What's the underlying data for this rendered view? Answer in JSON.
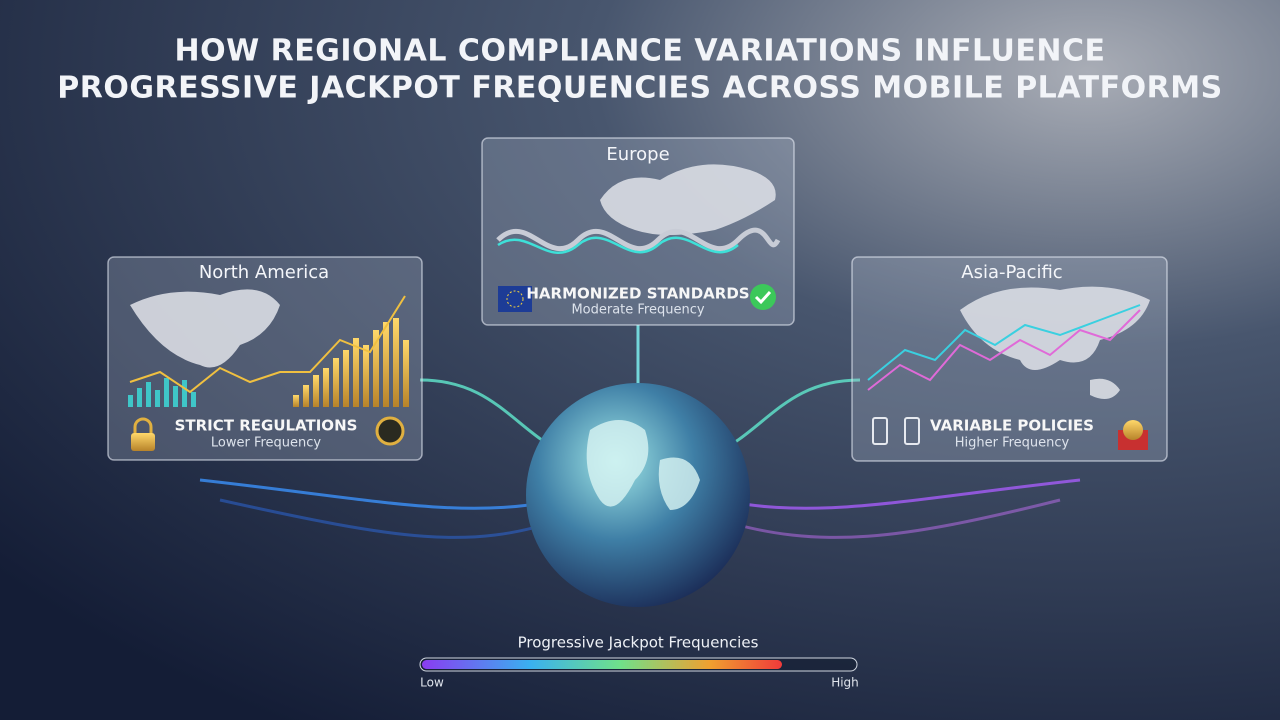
{
  "header": {
    "title_lines": [
      "HOW REGIONAL COMPLIANCE VARIATIONS INFLUENCE",
      "PROGRESSIVE JACKPOT FREQUENCIES ACROSS MOBILE PLATFORMS"
    ]
  },
  "cards": [
    {
      "region": "North America",
      "heading": "STRICT REGULATIONS",
      "subheading": "Lower Frequency"
    },
    {
      "region": "Europe",
      "heading": "HARMONIZED STANDARDS",
      "subheading": "Moderate Frequency"
    },
    {
      "region": "Asia-Pacific",
      "heading": "VARIABLE POLICIES",
      "subheading": "Higher Frequency"
    }
  ],
  "legend": {
    "title": "Progressive Jackpot Frequencies",
    "low": "Low",
    "high": "High"
  }
}
